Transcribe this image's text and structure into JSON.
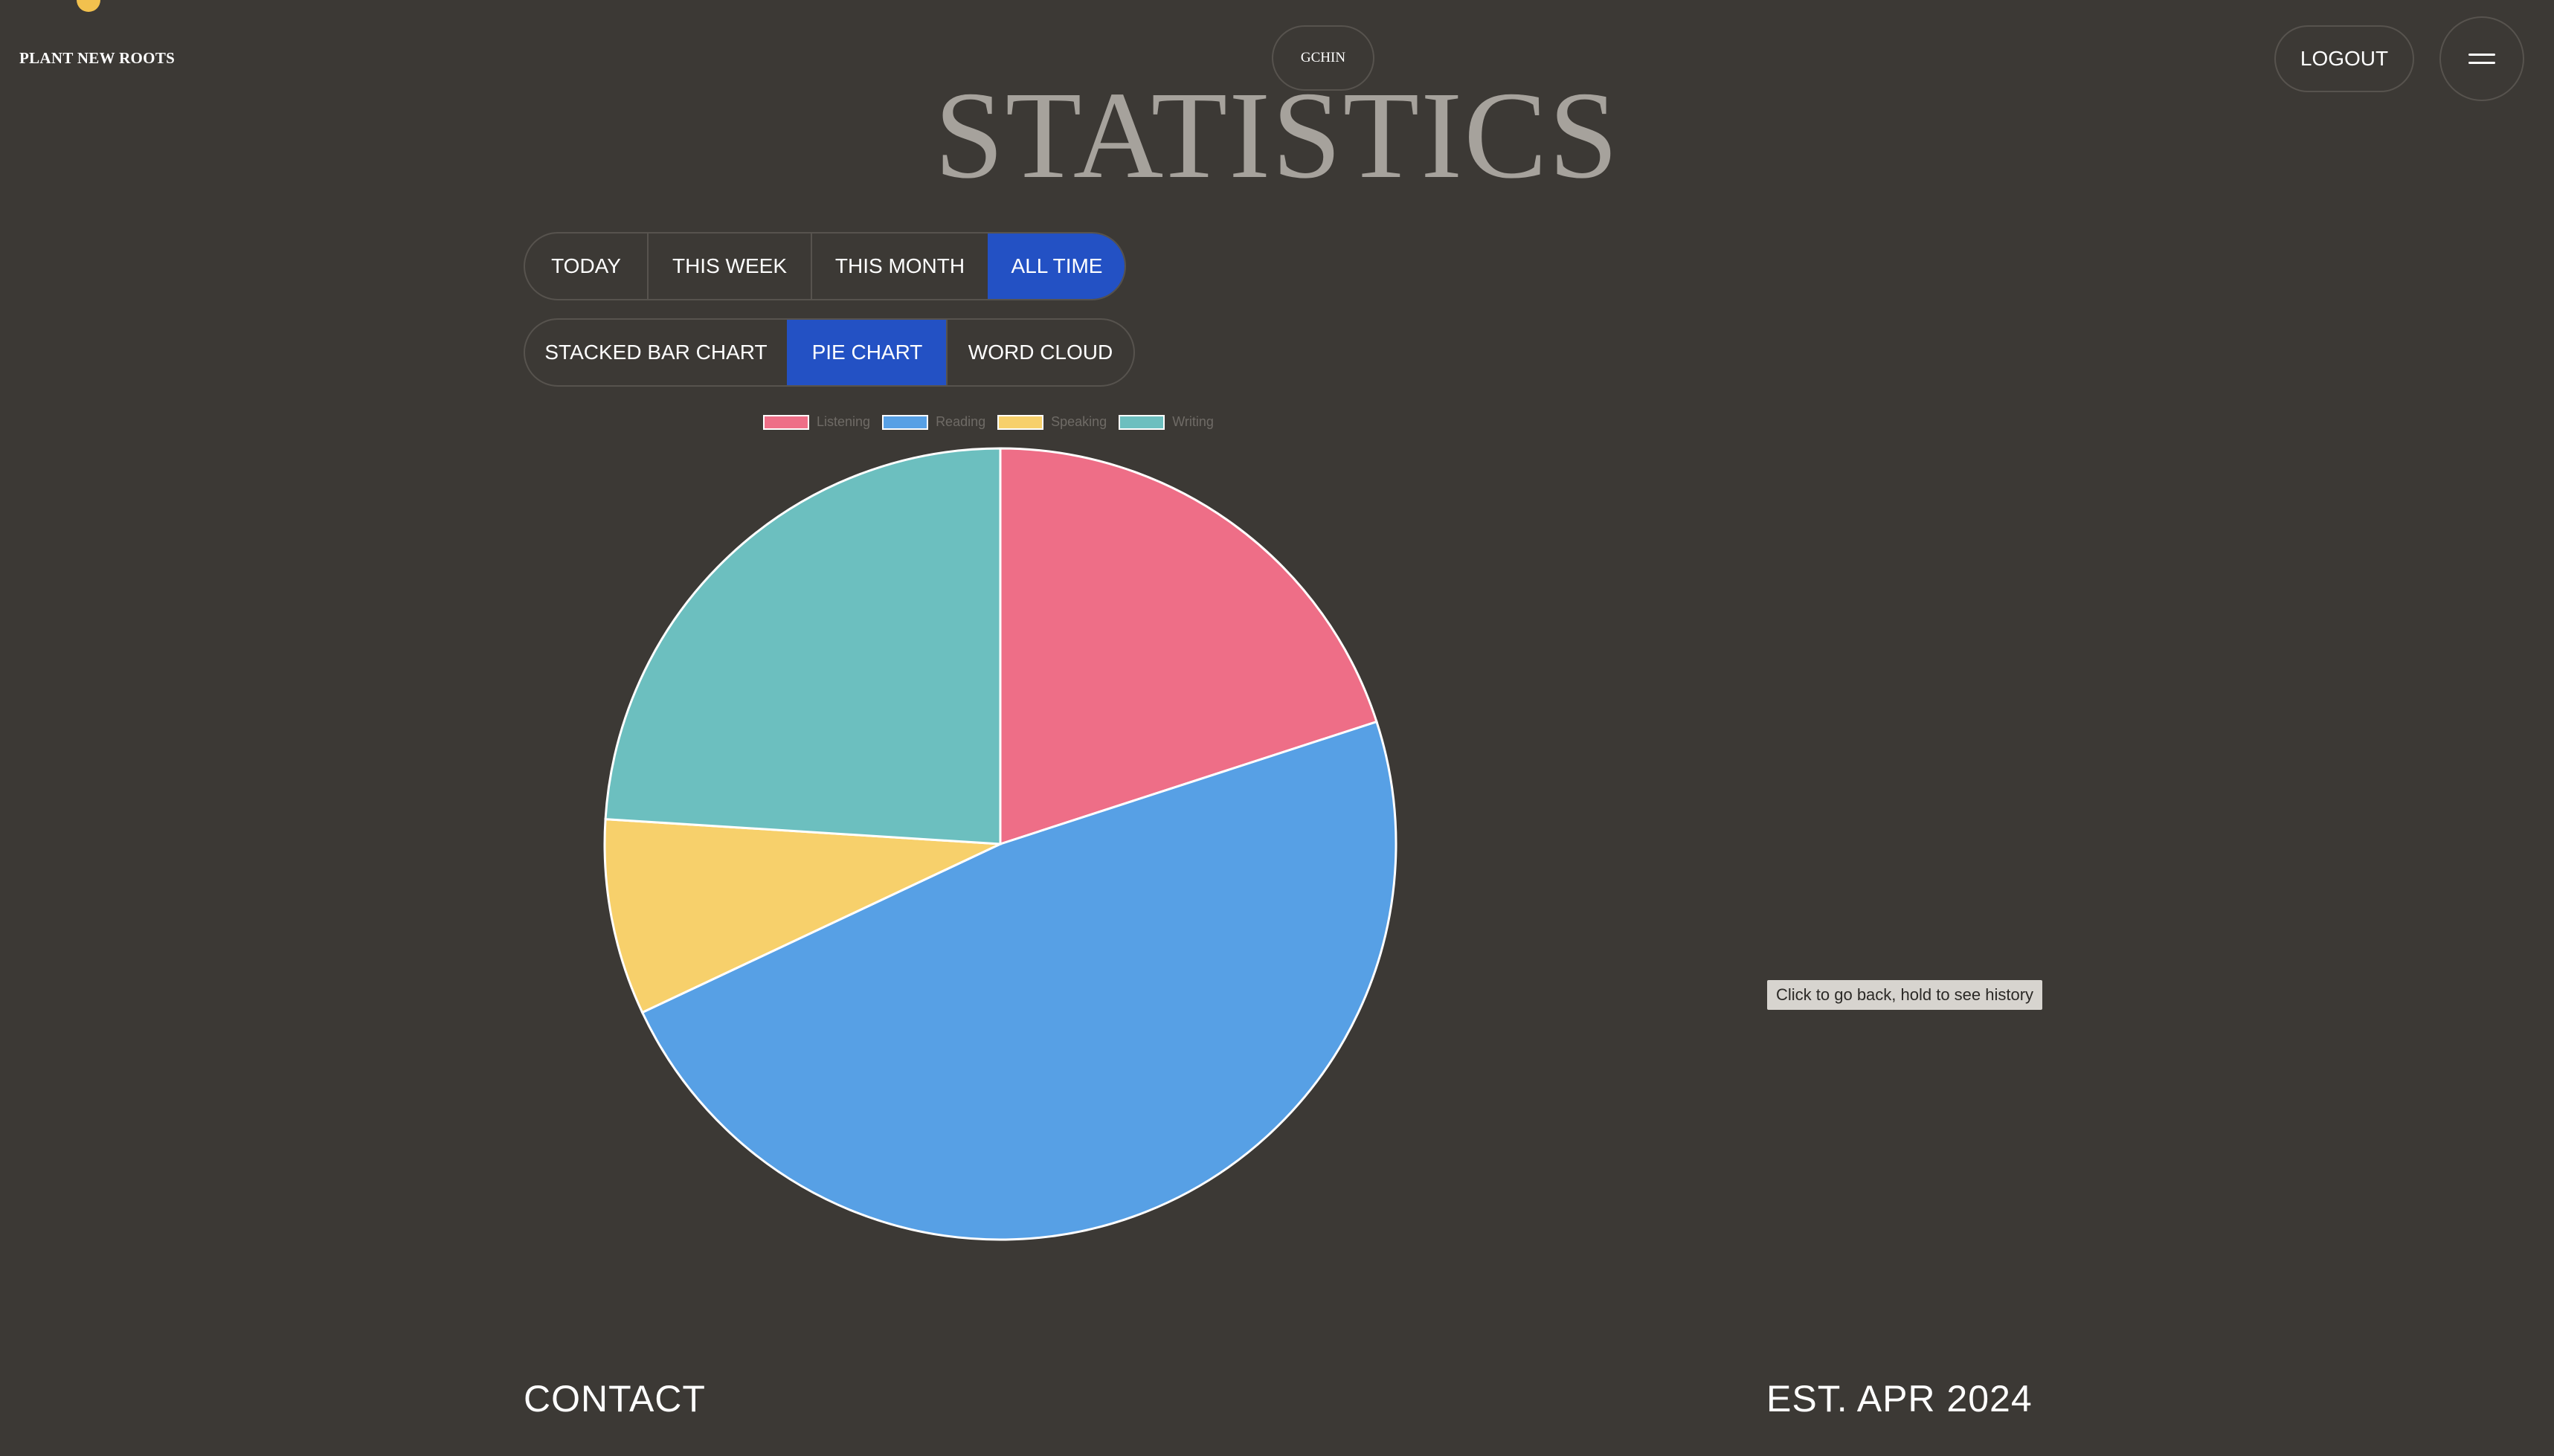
{
  "header": {
    "brand": "PLANT NEW ROOTS",
    "user": "GCHIN",
    "logout_label": "LOGOUT"
  },
  "page_title": "STATISTICS",
  "time_range": {
    "options": [
      "TODAY",
      "THIS WEEK",
      "THIS MONTH",
      "ALL TIME"
    ],
    "selected": "ALL TIME"
  },
  "chart_view": {
    "options": [
      "STACKED BAR CHART",
      "PIE CHART",
      "WORD CLOUD"
    ],
    "selected": "PIE CHART"
  },
  "chart_data": {
    "type": "pie",
    "categories": [
      "Listening",
      "Reading",
      "Speaking",
      "Writing"
    ],
    "values": [
      20,
      48,
      8,
      24
    ],
    "colors": [
      "#ee6e87",
      "#57a0e5",
      "#f7d06b",
      "#6cbfbf"
    ],
    "legend_position": "top"
  },
  "tooltip": "Click to go back, hold to see history",
  "footer": {
    "contact_label": "CONTACT",
    "established": "EST. APR 2024"
  },
  "colors": {
    "background": "#3c3935",
    "accent": "#2351c4",
    "logo_dot": "#f2c14e"
  },
  "icons": {
    "menu": "hamburger-menu-icon"
  }
}
